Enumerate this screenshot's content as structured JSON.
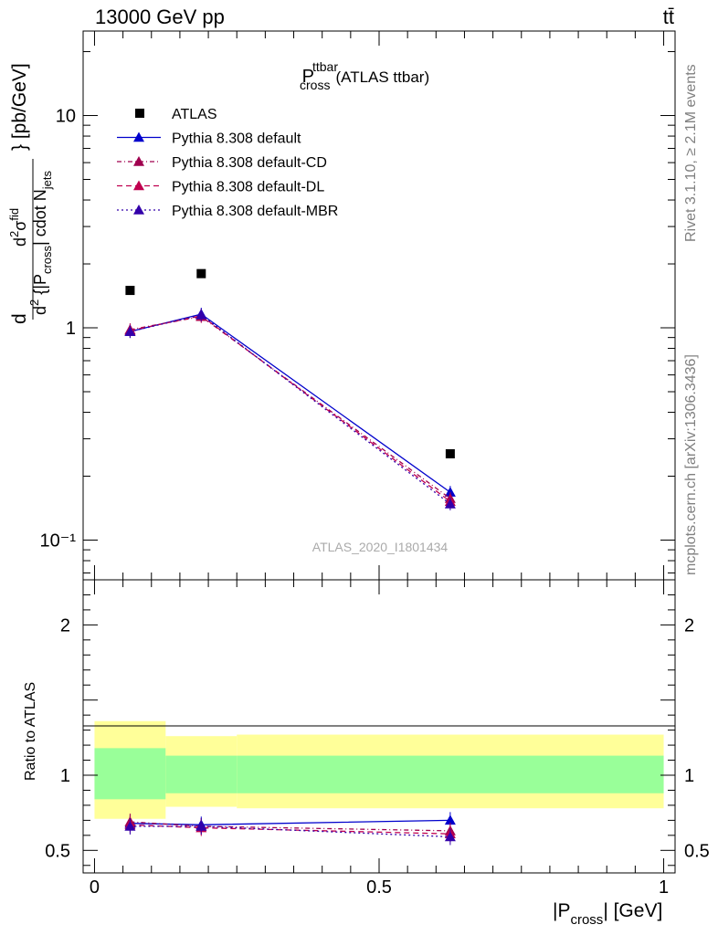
{
  "header": {
    "energy_label": "13000 GeV pp",
    "process_label": "tt̄"
  },
  "side_text": {
    "rivet": "Rivet 3.1.10, ≥ 2.1M events",
    "mcplots": "mcplots.cern.ch [arXiv:1306.3436]"
  },
  "watermark": "ATLAS_2020_I1801434",
  "colors": {
    "atlas": "#000000",
    "default": "#0000cc",
    "cd": "#a0004f",
    "dl": "#c0004f",
    "mbr": "#3300aa",
    "band_yellow": "#ffff99",
    "band_green": "#99ff99"
  },
  "chart_data": [
    {
      "type": "scatter",
      "panel": "main",
      "title": "P_cross^ttbar (ATLAS ttbar)",
      "title_main": "P",
      "title_sup": "ttbar",
      "title_sub": "cross",
      "title_rest": "(ATLAS ttbar)",
      "ylabel": "d²σ^fid / d²{|P_cross| cdot N_jets} [pb/GeV]",
      "y_scale": "log",
      "ylim": [
        0.065,
        25
      ],
      "xlim": [
        -0.02,
        1.02
      ],
      "y_tick_labels": [
        "10⁻¹",
        "1",
        "10"
      ],
      "legend_position": "top-left",
      "series": [
        {
          "name": "ATLAS",
          "key": "atlas",
          "style": "marker",
          "x": [
            0.0625,
            0.1875,
            0.625
          ],
          "y": [
            1.5,
            1.8,
            0.255
          ]
        },
        {
          "name": "Pythia 8.308 default",
          "key": "default",
          "style": "solid",
          "x": [
            0.0625,
            0.1875,
            0.625
          ],
          "y": [
            0.96,
            1.16,
            0.168
          ]
        },
        {
          "name": "Pythia 8.308 default-CD",
          "key": "cd",
          "style": "dash-dot",
          "x": [
            0.0625,
            0.1875,
            0.625
          ],
          "y": [
            0.98,
            1.13,
            0.157
          ]
        },
        {
          "name": "Pythia 8.308 default-DL",
          "key": "dl",
          "style": "dashed",
          "x": [
            0.0625,
            0.1875,
            0.625
          ],
          "y": [
            0.97,
            1.14,
            0.152
          ]
        },
        {
          "name": "Pythia 8.308 default-MBR",
          "key": "mbr",
          "style": "dotted",
          "x": [
            0.0625,
            0.1875,
            0.625
          ],
          "y": [
            0.96,
            1.15,
            0.148
          ]
        }
      ]
    },
    {
      "type": "line",
      "panel": "ratio",
      "ylabel": "Ratio to ATLAS",
      "xlabel": "|P_cross| [GeV]",
      "xlabel_main": "|P",
      "xlabel_sub": "cross",
      "xlabel_rest": "| [GeV]",
      "ylim": [
        0.35,
        2.3
      ],
      "xlim": [
        -0.02,
        1.02
      ],
      "x_ticks": [
        0,
        0.5,
        1
      ],
      "x_tick_labels": [
        "0",
        "0.5",
        "1"
      ],
      "y_ticks": [
        0.5,
        1,
        2
      ],
      "y_tick_labels": [
        "0.5",
        "1",
        "2"
      ],
      "bands": [
        {
          "x_from": 0.0,
          "x_to": 0.125,
          "yellow": [
            0.71,
            1.36
          ],
          "green": [
            0.84,
            1.18
          ]
        },
        {
          "x_from": 0.125,
          "x_to": 0.25,
          "yellow": [
            0.79,
            1.26
          ],
          "green": [
            0.88,
            1.13
          ]
        },
        {
          "x_from": 0.25,
          "x_to": 1.0,
          "yellow": [
            0.78,
            1.27
          ],
          "green": [
            0.88,
            1.13
          ]
        }
      ],
      "series": [
        {
          "name": "Pythia 8.308 default",
          "key": "default",
          "style": "solid",
          "x": [
            0.0625,
            0.1875,
            0.625
          ],
          "y": [
            0.68,
            0.67,
            0.7
          ]
        },
        {
          "name": "Pythia 8.308 default-CD",
          "key": "cd",
          "style": "dash-dot",
          "x": [
            0.0625,
            0.1875,
            0.625
          ],
          "y": [
            0.69,
            0.66,
            0.63
          ]
        },
        {
          "name": "Pythia 8.308 default-DL",
          "key": "dl",
          "style": "dashed",
          "x": [
            0.0625,
            0.1875,
            0.625
          ],
          "y": [
            0.67,
            0.65,
            0.61
          ]
        },
        {
          "name": "Pythia 8.308 default-MBR",
          "key": "mbr",
          "style": "dotted",
          "x": [
            0.0625,
            0.1875,
            0.625
          ],
          "y": [
            0.66,
            0.66,
            0.59
          ]
        }
      ]
    }
  ]
}
